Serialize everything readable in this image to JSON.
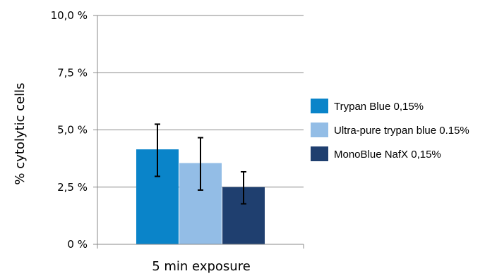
{
  "chart_data": {
    "type": "bar",
    "categories": [
      "5 min exposure"
    ],
    "xlabel": "5 min exposure",
    "ylabel": "% cytolytic cells",
    "ylim": [
      0,
      10
    ],
    "yticks": [
      0,
      2.5,
      5,
      7.5,
      10
    ],
    "ytick_labels": [
      "0 %",
      "2,5 %",
      "5,0 %",
      "7,5 %",
      "10,0 %"
    ],
    "grid": true,
    "legend_position": "right",
    "series": [
      {
        "name": "Trypan Blue 0,15%",
        "color": "#0a84c9",
        "values": [
          4.15
        ],
        "error_low": [
          2.97
        ],
        "error_high": [
          5.25
        ]
      },
      {
        "name": "Ultra-pure trypan blue 0.15%",
        "color": "#93bde6",
        "values": [
          3.55
        ],
        "error_low": [
          2.37
        ],
        "error_high": [
          4.66
        ]
      },
      {
        "name": "MonoBlue NafX 0,15%",
        "color": "#1f3f6f",
        "values": [
          2.5
        ],
        "error_low": [
          1.77
        ],
        "error_high": [
          3.17
        ]
      }
    ]
  }
}
